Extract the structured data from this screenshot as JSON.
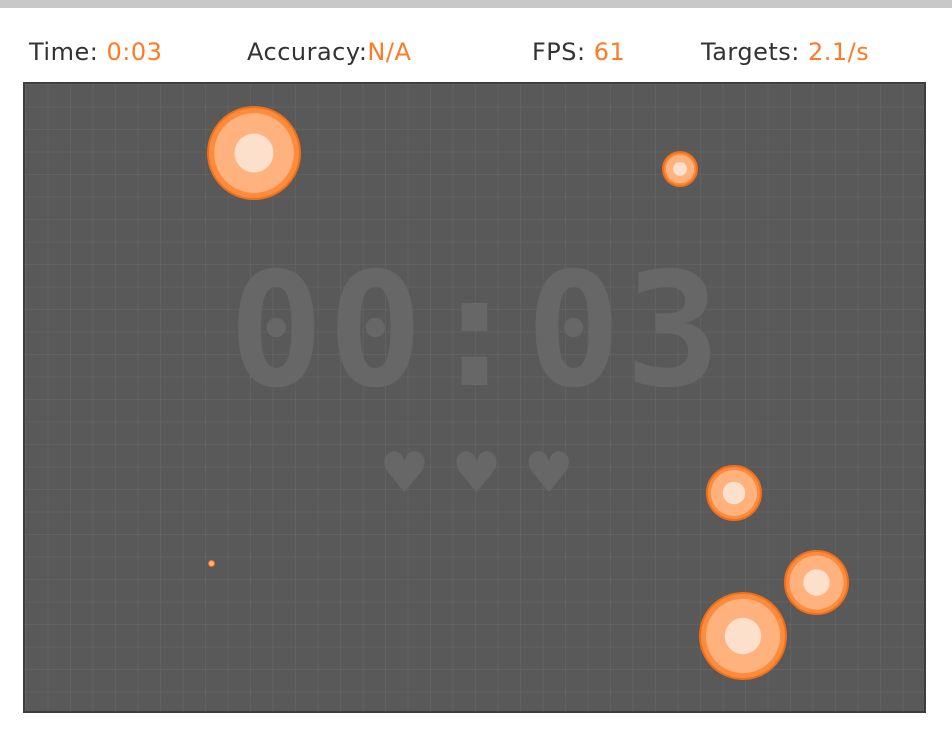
{
  "hud": {
    "time_label": "Time:",
    "time_value": "0:03",
    "accuracy_label": "Accuracy:",
    "accuracy_value": "N/A",
    "fps_label": "FPS:",
    "fps_value": "61",
    "targets_label": "Targets:",
    "targets_value": "2.1/s"
  },
  "arena": {
    "countdown": "00:03",
    "lives_remaining": 3,
    "heart_icon": "heart-icon"
  },
  "colors": {
    "accent": "#ff7a22",
    "arena_bg": "#595959",
    "target_outer": "#ff8b3d",
    "target_mid": "#ffb27e",
    "target_core": "#fde0cb"
  }
}
